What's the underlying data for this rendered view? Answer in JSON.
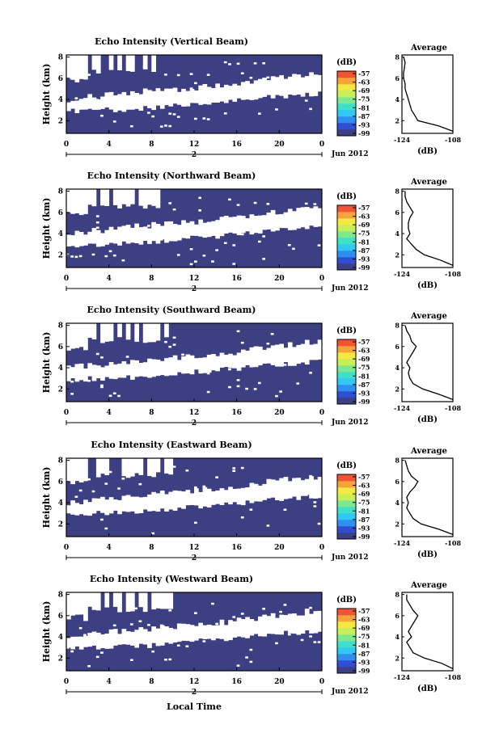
{
  "global": {
    "xlabel": "Local Time",
    "date_label": "Jun 2012",
    "day_label": "2",
    "ylabel": "Height (km)",
    "cbar_unit": "(dB)",
    "avg_title": "Average",
    "avg_xlabel": "(dB)",
    "avg_xticks": [
      "-124",
      "-108"
    ],
    "main_yticks": [
      "2",
      "4",
      "6",
      "8"
    ],
    "avg_yticks": [
      "2",
      "4",
      "6",
      "8"
    ],
    "cbar_ticks": [
      "-57",
      "-63",
      "-69",
      "-75",
      "-81",
      "-87",
      "-93",
      "-99"
    ],
    "colors": {
      "background_field": "#3c3f82",
      "cbar": [
        "#3c3f82",
        "#2f4fd0",
        "#2f8ff0",
        "#33c7f3",
        "#3fe0c8",
        "#7de890",
        "#c8ef55",
        "#f4e842",
        "#f7a33a",
        "#ef5534"
      ]
    }
  },
  "chart_data": [
    {
      "type": "heatmap",
      "title": "Echo Intensity (Vertical Beam)",
      "xlabel": "",
      "ylabel": "Height (km)",
      "x_ticks": [
        "0",
        "4",
        "8",
        "12",
        "16",
        "20",
        "0"
      ],
      "xlim": [
        0,
        24
      ],
      "ylim": [
        0.8,
        8.2
      ],
      "colorbar": {
        "label": "(dB)",
        "range": [
          -99,
          -57
        ]
      },
      "average_profile": {
        "title": "Average",
        "xlabel": "(dB)",
        "xlim": [
          -124,
          -108
        ],
        "height_km": [
          1.0,
          1.5,
          2.0,
          2.5,
          3.0,
          3.5,
          4.0,
          4.5,
          5.0,
          5.5,
          6.0,
          6.5,
          7.0,
          7.5,
          8.0
        ],
        "db": [
          -108.0,
          -112.5,
          -119.0,
          -120.0,
          -121.0,
          -121.5,
          -122.0,
          -122.5,
          -123.0,
          -123.0,
          -123.5,
          -123.5,
          -123.2,
          -123.0,
          -123.5
        ]
      }
    },
    {
      "type": "heatmap",
      "title": "Echo Intensity (Northward Beam)",
      "xlabel": "",
      "ylabel": "Height (km)",
      "x_ticks": [
        "0",
        "4",
        "8",
        "12",
        "16",
        "20",
        "0"
      ],
      "xlim": [
        0,
        24
      ],
      "ylim": [
        0.8,
        8.2
      ],
      "colorbar": {
        "label": "(dB)",
        "range": [
          -99,
          -57
        ]
      },
      "average_profile": {
        "title": "Average",
        "xlabel": "(dB)",
        "xlim": [
          -124,
          -108
        ],
        "height_km": [
          1.0,
          1.5,
          2.0,
          2.5,
          3.0,
          3.5,
          4.0,
          4.5,
          5.0,
          5.5,
          6.0,
          6.5,
          7.0,
          7.5,
          8.0
        ],
        "db": [
          -108.0,
          -112.0,
          -117.0,
          -119.5,
          -121.0,
          -122.5,
          -121.5,
          -122.0,
          -122.0,
          -121.5,
          -120.5,
          -121.5,
          -122.5,
          -123.0,
          -123.0
        ]
      }
    },
    {
      "type": "heatmap",
      "title": "Echo Intensity (Southward Beam)",
      "xlabel": "",
      "ylabel": "Height (km)",
      "x_ticks": [
        "0",
        "4",
        "8",
        "12",
        "16",
        "20",
        "0"
      ],
      "xlim": [
        0,
        24
      ],
      "ylim": [
        0.8,
        8.2
      ],
      "colorbar": {
        "label": "(dB)",
        "range": [
          -99,
          -57
        ]
      },
      "average_profile": {
        "title": "Average",
        "xlabel": "(dB)",
        "xlim": [
          -124,
          -108
        ],
        "height_km": [
          1.0,
          1.5,
          2.0,
          2.5,
          3.0,
          3.5,
          4.0,
          4.5,
          5.0,
          5.5,
          6.0,
          6.5,
          7.0,
          7.5,
          8.0
        ],
        "db": [
          -108.0,
          -112.5,
          -117.5,
          -120.5,
          -121.5,
          -122.0,
          -121.5,
          -122.5,
          -121.5,
          -120.5,
          -119.5,
          -121.0,
          -121.5,
          -122.5,
          -123.0
        ]
      }
    },
    {
      "type": "heatmap",
      "title": "Echo Intensity (Eastward Beam)",
      "xlabel": "",
      "ylabel": "Height (km)",
      "x_ticks": [
        "0",
        "4",
        "8",
        "12",
        "16",
        "20",
        "0"
      ],
      "xlim": [
        0,
        24
      ],
      "ylim": [
        0.8,
        8.2
      ],
      "colorbar": {
        "label": "(dB)",
        "range": [
          -99,
          -57
        ]
      },
      "average_profile": {
        "title": "Average",
        "xlabel": "(dB)",
        "xlim": [
          -124,
          -108
        ],
        "height_km": [
          1.0,
          1.5,
          2.0,
          2.5,
          3.0,
          3.5,
          4.0,
          4.5,
          5.0,
          5.5,
          6.0,
          6.5,
          7.0,
          7.5,
          8.0
        ],
        "db": [
          -108.0,
          -112.5,
          -118.0,
          -120.5,
          -121.5,
          -122.5,
          -122.0,
          -122.5,
          -121.5,
          -120.0,
          -119.0,
          -121.0,
          -122.0,
          -122.5,
          -123.0
        ]
      }
    },
    {
      "type": "heatmap",
      "title": "Echo Intensity (Westward Beam)",
      "xlabel": "Local Time",
      "ylabel": "Height (km)",
      "x_ticks": [
        "0",
        "4",
        "8",
        "12",
        "16",
        "20",
        "0"
      ],
      "xlim": [
        0,
        24
      ],
      "ylim": [
        0.8,
        8.2
      ],
      "colorbar": {
        "label": "(dB)",
        "range": [
          -99,
          -57
        ]
      },
      "average_profile": {
        "title": "Average",
        "xlabel": "(dB)",
        "xlim": [
          -124,
          -108
        ],
        "height_km": [
          1.0,
          1.5,
          2.0,
          2.5,
          3.0,
          3.5,
          4.0,
          4.5,
          5.0,
          5.5,
          6.0,
          6.5,
          7.0,
          7.5,
          8.0
        ],
        "db": [
          -108.0,
          -111.5,
          -117.0,
          -120.5,
          -121.5,
          -122.5,
          -121.0,
          -122.0,
          -121.0,
          -120.0,
          -119.0,
          -120.5,
          -121.5,
          -122.5,
          -122.5
        ]
      }
    }
  ]
}
